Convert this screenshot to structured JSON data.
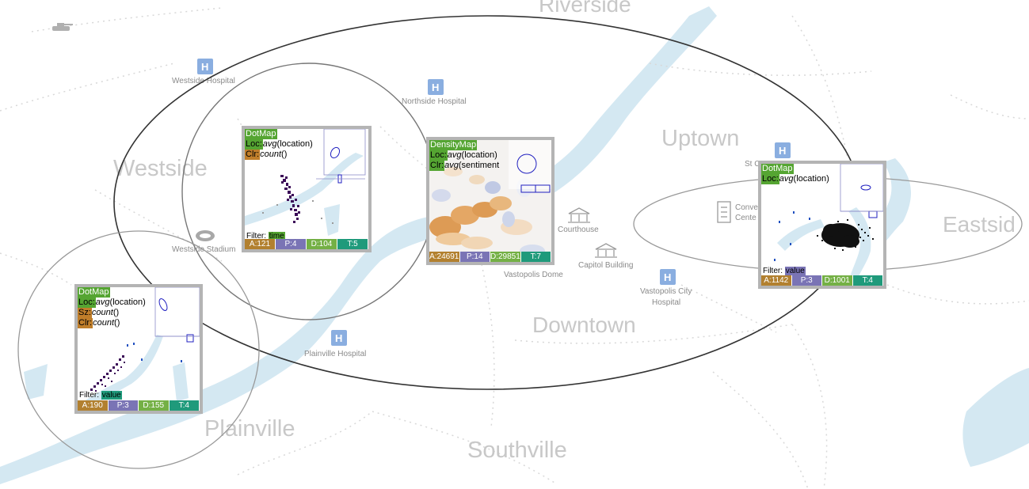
{
  "districts": {
    "riverside": "Riverside",
    "westside": "Westside",
    "uptown": "Uptown",
    "eastside": "Eastsid",
    "downtown": "Downtown",
    "plainville": "Plainville",
    "southville": "Southville"
  },
  "pois": {
    "westside_hospital": "Westside Hospital",
    "northside_hospital": "Northside Hospital",
    "westside_stadium": "Westside Stadium",
    "plainville_hospital": "Plainville Hospital",
    "courthouse": "Courthouse",
    "capitol_building": "Capitol Building",
    "vastopolis_dome": "Vastopolis Dome",
    "vastopolis_city_hospital_1": "Vastopolis City",
    "vastopolis_city_hospital_2": "Hospital",
    "convention_1": "Conve",
    "convention_2": "Cente",
    "st_partial": "St C"
  },
  "icons": {
    "hospital": "H",
    "colors": {
      "hospital": "#8aaee0",
      "river": "#d4e8f2",
      "card_border": "#b4b4b4",
      "type_tag": "#55a532",
      "size_color_tag": "#c07e2a",
      "stat_a": "#b2802f",
      "stat_p": "#7a74b5",
      "stat_d": "#74b045",
      "stat_t": "#1f9a7b",
      "dots": "#3b0a57"
    }
  },
  "cards": {
    "c1": {
      "type": "DotMap",
      "loc_key": "Loc:",
      "loc_fn": "avg",
      "loc_arg": "(location)",
      "clr_key": "Clr:",
      "clr_fn": "count",
      "clr_arg": "()",
      "filter_label": "Filter:",
      "filter_value": "time",
      "stat_a": "A:121",
      "stat_p": "P:4",
      "stat_d": "D:104",
      "stat_t": "T:5"
    },
    "c2": {
      "type": "DensityMap",
      "loc_key": "Loc:",
      "loc_fn": "avg",
      "loc_arg": "(location)",
      "clr_key": "Clr:",
      "clr_fn": "avg",
      "clr_arg": "(sentiment",
      "stat_a": "A:24691",
      "stat_p": "P:14",
      "stat_d": "D:29851",
      "stat_t": "T:7"
    },
    "c3": {
      "type": "DotMap",
      "loc_key": "Loc:",
      "loc_fn": "avg",
      "loc_arg": "(location)",
      "filter_label": "Filter:",
      "filter_value": "value",
      "stat_a": "A:1142",
      "stat_p": "P:3",
      "stat_d": "D:1001",
      "stat_t": "T:4"
    },
    "c4": {
      "type": "DotMap",
      "loc_key": "Loc:",
      "loc_fn": "avg",
      "loc_arg": "(location)",
      "sz_key": "Sz:",
      "sz_fn": "count",
      "sz_arg": "()",
      "clr_key": "Clr:",
      "clr_fn": "count",
      "clr_arg": "()",
      "filter_label": "Filter:",
      "filter_value": "value",
      "stat_a": "A:190",
      "stat_p": "P:3",
      "stat_d": "D:155",
      "stat_t": "T:4"
    }
  }
}
